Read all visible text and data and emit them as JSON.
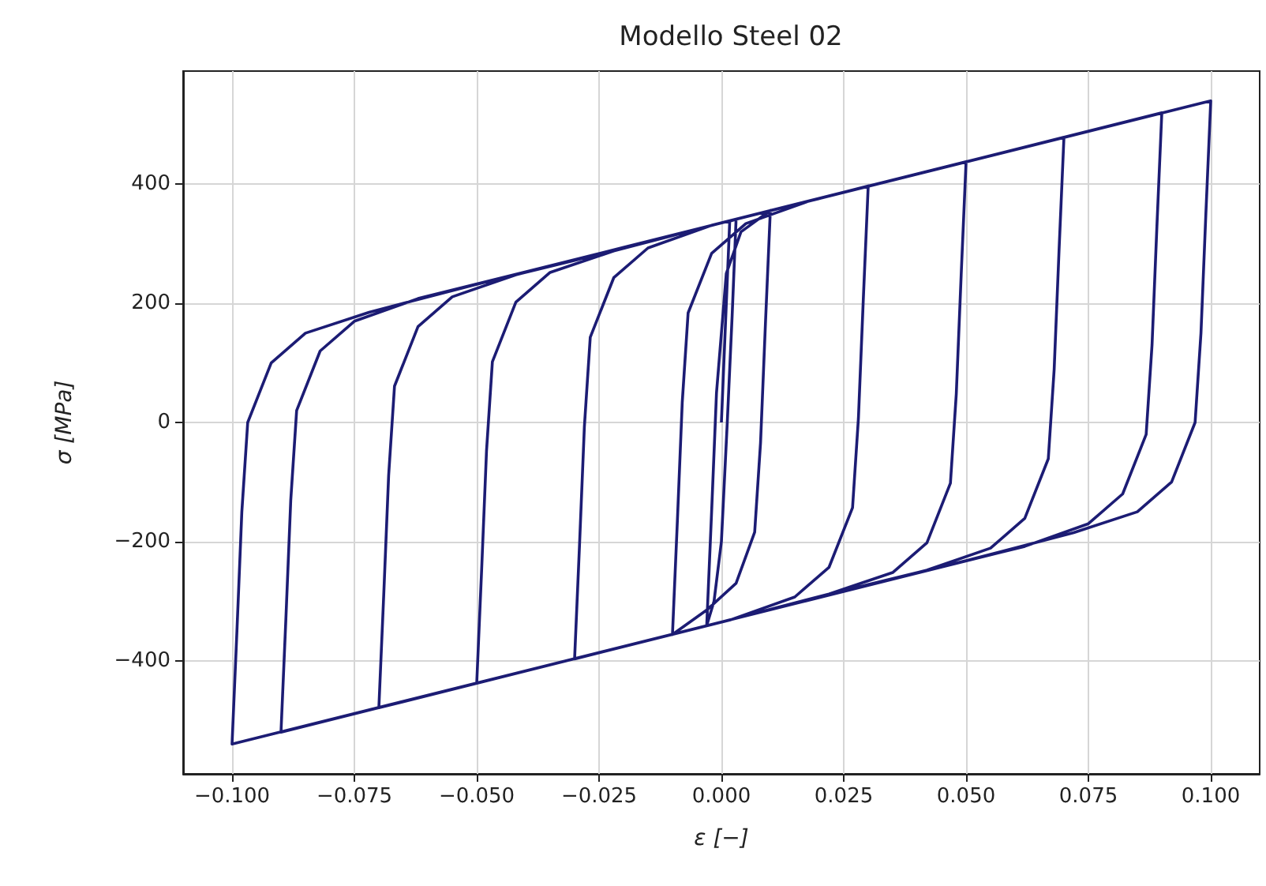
{
  "chart_data": {
    "type": "line",
    "title": "Modello Steel 02",
    "xlabel": "ε [−]",
    "ylabel": "σ [MPa]",
    "grid": true,
    "xlim": [
      -0.11,
      0.11
    ],
    "ylim": [
      -590,
      590
    ],
    "xticks": [
      {
        "value": -0.1,
        "label": "−0.100"
      },
      {
        "value": -0.075,
        "label": "−0.075"
      },
      {
        "value": -0.05,
        "label": "−0.050"
      },
      {
        "value": -0.025,
        "label": "−0.025"
      },
      {
        "value": 0,
        "label": "0.000"
      },
      {
        "value": 0.025,
        "label": "0.025"
      },
      {
        "value": 0.05,
        "label": "0.050"
      },
      {
        "value": 0.075,
        "label": "0.075"
      },
      {
        "value": 0.1,
        "label": "0.100"
      }
    ],
    "yticks": [
      {
        "value": -400,
        "label": "−400"
      },
      {
        "value": -200,
        "label": "−200"
      },
      0,
      200,
      400
    ],
    "series": [
      {
        "color": "#1c1c74",
        "x": [
          0,
          0.0017,
          0.003,
          0.0022,
          0.0012,
          0,
          -0.0015,
          -0.003,
          -0.002,
          -0.001,
          0.001,
          0.004,
          0.01,
          0.009,
          0.008,
          0.0068,
          0.003,
          -0.003,
          -0.01,
          -0.009,
          -0.008,
          -0.0068,
          -0.002,
          0.005,
          0.018,
          0.03,
          0.029,
          0.028,
          0.0268,
          0.022,
          0.015,
          0.002,
          -0.03,
          -0.029,
          -0.028,
          -0.0268,
          -0.022,
          -0.015,
          -0.002,
          0.05,
          0.049,
          0.048,
          0.0468,
          0.042,
          0.035,
          0.022,
          0,
          -0.05,
          -0.049,
          -0.048,
          -0.0468,
          -0.042,
          -0.035,
          -0.022,
          0,
          0.07,
          0.069,
          0.068,
          0.0668,
          0.062,
          0.055,
          0.042,
          0.02,
          -0.07,
          -0.069,
          -0.068,
          -0.0668,
          -0.062,
          -0.055,
          -0.042,
          -0.02,
          0.09,
          0.089,
          0.088,
          0.0868,
          0.082,
          0.075,
          0.062,
          0.04,
          0.02,
          -0.09,
          -0.089,
          -0.088,
          -0.0868,
          -0.082,
          -0.075,
          -0.062,
          -0.04,
          -0.02,
          0.1,
          0.099,
          0.098,
          0.0968,
          0.092,
          0.085,
          0.072,
          0.05,
          0.03,
          0,
          -0.1,
          -0.099,
          -0.098,
          -0.0968,
          -0.092,
          -0.085,
          -0.072,
          -0.05,
          -0.03,
          0,
          0.02
        ],
        "values": [
          0,
          338,
          341,
          180,
          0,
          -200,
          -300,
          -341,
          -150,
          50,
          250,
          320,
          356,
          166,
          -34,
          -184,
          -270,
          -315,
          -356,
          -166,
          34,
          184,
          284,
          334,
          372,
          397,
          207,
          7,
          -143,
          -243,
          -293,
          -331,
          -397,
          -207,
          -7,
          143,
          243,
          293,
          331,
          438,
          248,
          48,
          -102,
          -202,
          -252,
          -288,
          -335,
          -438,
          -248,
          -48,
          102,
          202,
          252,
          288,
          335,
          479,
          289,
          89,
          -61,
          -161,
          -211,
          -248,
          -294,
          -479,
          -289,
          -89,
          61,
          161,
          211,
          248,
          294,
          520,
          330,
          130,
          -20,
          -120,
          -170,
          -208,
          -253,
          -294,
          -520,
          -330,
          -130,
          20,
          120,
          170,
          208,
          253,
          294,
          540,
          350,
          150,
          0,
          -100,
          -150,
          -185,
          -232,
          -272,
          -335,
          -540,
          -350,
          -150,
          0,
          100,
          150,
          185,
          232,
          272,
          335,
          376
        ]
      }
    ]
  }
}
